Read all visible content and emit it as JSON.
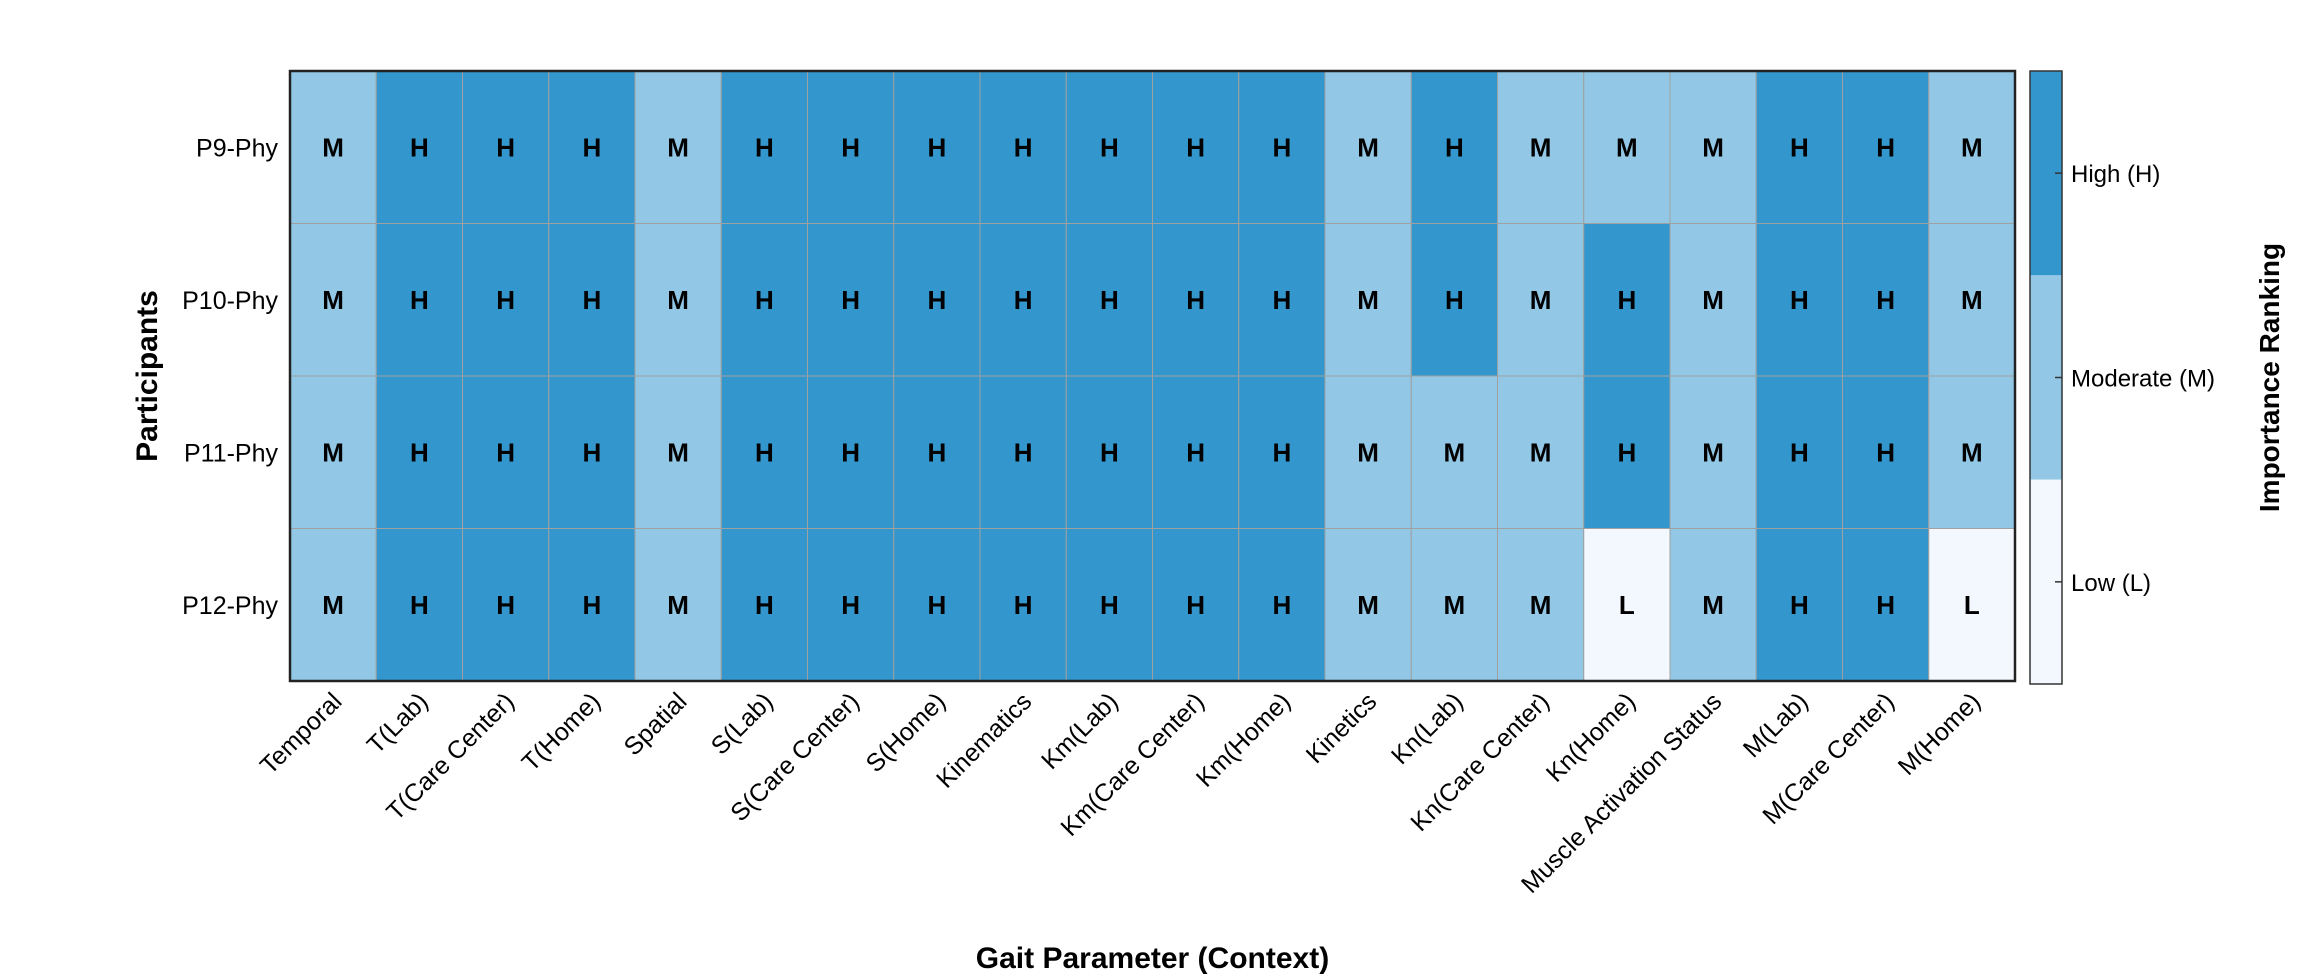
{
  "chart_data": {
    "type": "heatmap",
    "title": "",
    "xlabel": "Gait Parameter (Context)",
    "ylabel": "Participants",
    "colorbar_label": "Importance Ranking",
    "rows": [
      "P9-Phy",
      "P10-Phy",
      "P11-Phy",
      "P12-Phy"
    ],
    "columns": [
      "Temporal",
      "T(Lab)",
      "T(Care Center)",
      "T(Home)",
      "Spatial",
      "S(Lab)",
      "S(Care Center)",
      "S(Home)",
      "Kinematics",
      "Km(Lab)",
      "Km(Care Center)",
      "Km(Home)",
      "Kinetics",
      "Kn(Lab)",
      "Kn(Care Center)",
      "Kn(Home)",
      "Muscle Activation Status",
      "M(Lab)",
      "M(Care Center)",
      "M(Home)"
    ],
    "values": [
      [
        "M",
        "H",
        "H",
        "H",
        "M",
        "H",
        "H",
        "H",
        "H",
        "H",
        "H",
        "H",
        "M",
        "H",
        "M",
        "M",
        "M",
        "H",
        "H",
        "M"
      ],
      [
        "M",
        "H",
        "H",
        "H",
        "M",
        "H",
        "H",
        "H",
        "H",
        "H",
        "H",
        "H",
        "M",
        "H",
        "M",
        "H",
        "M",
        "H",
        "H",
        "M"
      ],
      [
        "M",
        "H",
        "H",
        "H",
        "M",
        "H",
        "H",
        "H",
        "H",
        "H",
        "H",
        "H",
        "M",
        "M",
        "M",
        "H",
        "M",
        "H",
        "H",
        "M"
      ],
      [
        "M",
        "H",
        "H",
        "H",
        "M",
        "H",
        "H",
        "H",
        "H",
        "H",
        "H",
        "H",
        "M",
        "M",
        "M",
        "L",
        "M",
        "H",
        "H",
        "L"
      ]
    ],
    "levels": [
      {
        "code": "L",
        "label": "Low (L)",
        "color": "#f2f8fd"
      },
      {
        "code": "M",
        "label": "Moderate (M)",
        "color": "#92c7e5"
      },
      {
        "code": "H",
        "label": "High (H)",
        "color": "#3397cd"
      }
    ],
    "grid": true,
    "grid_color": "#a0a0a0"
  }
}
